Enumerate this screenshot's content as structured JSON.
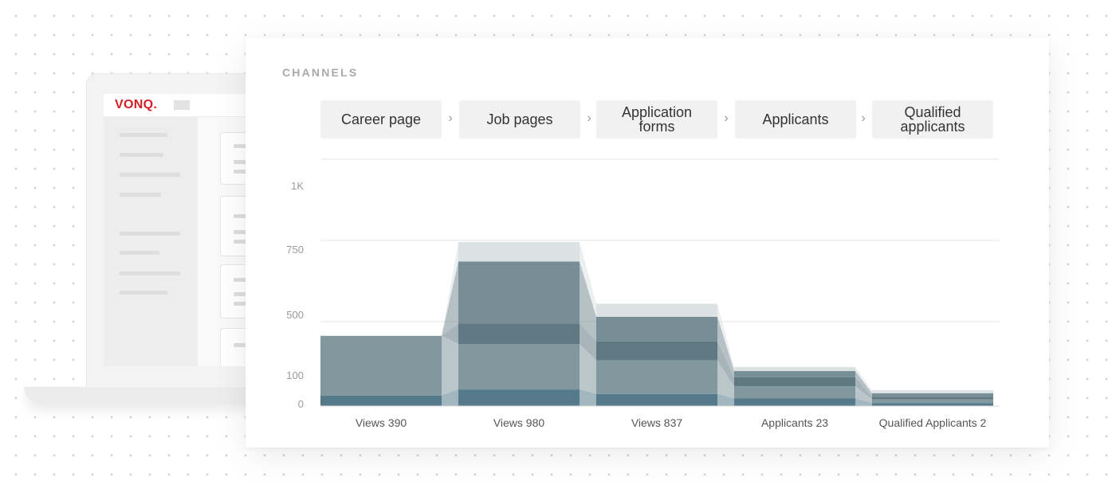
{
  "logo": {
    "text": "VONQ."
  },
  "panel": {
    "title": "CHANNELS",
    "stages": [
      "Career page",
      "Job pages",
      "Application forms",
      "Applicants",
      "Qualified applicants"
    ],
    "chevron": "›"
  },
  "chart_data": {
    "type": "area",
    "categories": [
      "Views 390",
      "Views 980",
      "Views 837",
      "Applicants 23",
      "Qualified Applicants 2"
    ],
    "y_ticks": [
      {
        "value": 1000,
        "label": "1K"
      },
      {
        "value": 750,
        "label": "750"
      },
      {
        "value": 500,
        "label": "500"
      },
      {
        "value": 100,
        "label": "100"
      },
      {
        "value": 0,
        "label": "0"
      }
    ],
    "ylim": [
      0,
      1000
    ],
    "grid": true,
    "series_stacks": [
      {
        "color": "#557a8a",
        "values": [
          35,
          55,
          40,
          25,
          10
        ]
      },
      {
        "color": "#82989f",
        "values": [
          360,
          280,
          175,
          40,
          12
        ]
      },
      {
        "color": "#5f7882",
        "values": [
          0,
          150,
          140,
          30,
          8
        ]
      },
      {
        "color": "#788e96",
        "values": [
          0,
          200,
          160,
          40,
          12
        ]
      },
      {
        "color": "#dce1e4",
        "values": [
          0,
          60,
          40,
          30,
          10
        ]
      }
    ]
  }
}
